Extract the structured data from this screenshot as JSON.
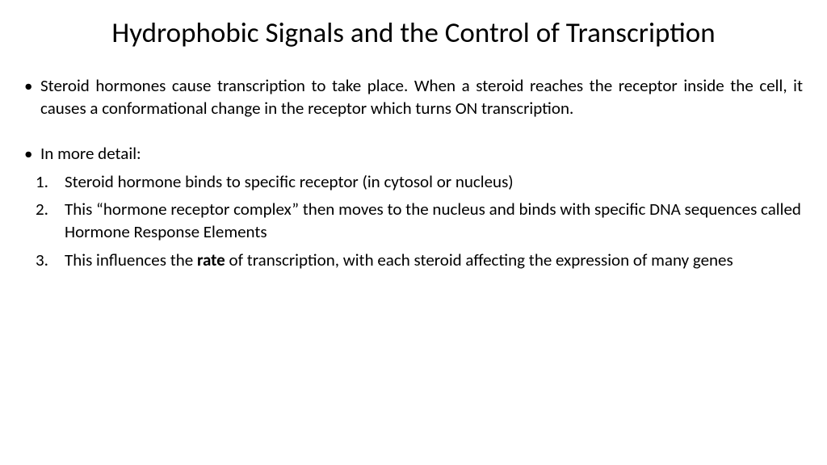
{
  "title": "Hydrophobic Signals and the Control of Transcription",
  "bullet1": "Steroid hormones cause transcription to take place. When a steroid reaches the receptor inside the cell, it causes a conformational change in the receptor which turns ON transcription.",
  "bullet2": "In more detail:",
  "num1_marker": "1.",
  "num1_text": "Steroid hormone binds to specific receptor (in cytosol or nucleus)",
  "num2_marker": "2.",
  "num2_text": "This “hormone receptor complex” then moves to the nucleus and binds with specific DNA sequences called Hormone Response Elements",
  "num3_marker": "3.",
  "num3_pre": "This influences the ",
  "num3_bold": "rate",
  "num3_post": " of transcription, with each steroid  affecting the expression of many genes"
}
